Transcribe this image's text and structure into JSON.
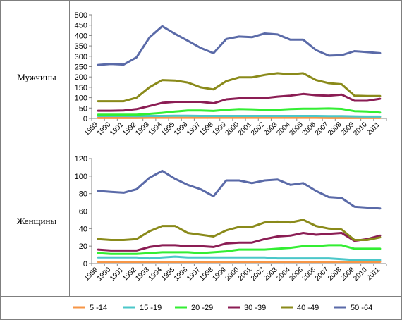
{
  "rows": [
    {
      "label": "Мужчины"
    },
    {
      "label": "Женщины"
    }
  ],
  "legend": [
    {
      "name": "5 -14",
      "color": "#f79646"
    },
    {
      "name": "15 -19",
      "color": "#4bc7c9"
    },
    {
      "name": "20 -29",
      "color": "#33ee33"
    },
    {
      "name": "30 -39",
      "color": "#8b1d54"
    },
    {
      "name": "40 -49",
      "color": "#8a8a1a"
    },
    {
      "name": "50 -64",
      "color": "#5a6aa8"
    }
  ],
  "chart_data": [
    {
      "type": "line",
      "title": "Мужчины",
      "xlabel": "",
      "ylabel": "",
      "ylim": [
        0,
        500
      ],
      "yticks": [
        "0",
        "50",
        "100",
        "150",
        "200",
        "250",
        "300",
        "350",
        "400",
        "450",
        "500"
      ],
      "grid": false,
      "x": [
        "1989",
        "1990",
        "1991",
        "1992",
        "1993",
        "1994",
        "1995",
        "1996",
        "1997",
        "1998",
        "1999",
        "2000",
        "2001",
        "2002",
        "2003",
        "2004",
        "2005",
        "2006",
        "2007",
        "2008",
        "2009",
        "2010",
        "2011"
      ],
      "series": [
        {
          "name": "5 -14",
          "values": [
            2,
            2,
            2,
            2,
            3,
            3,
            3,
            3,
            3,
            3,
            3,
            3,
            3,
            3,
            3,
            3,
            3,
            3,
            2,
            2,
            2,
            2,
            2
          ]
        },
        {
          "name": "15 -19",
          "values": [
            12,
            12,
            12,
            11,
            12,
            12,
            13,
            13,
            12,
            12,
            12,
            12,
            12,
            12,
            12,
            12,
            12,
            12,
            11,
            11,
            10,
            9,
            9
          ]
        },
        {
          "name": "20 -29",
          "values": [
            18,
            18,
            18,
            18,
            22,
            27,
            33,
            38,
            38,
            36,
            42,
            45,
            44,
            42,
            42,
            45,
            47,
            47,
            48,
            46,
            35,
            33,
            28
          ]
        },
        {
          "name": "30 -39",
          "values": [
            37,
            37,
            38,
            45,
            60,
            75,
            80,
            80,
            80,
            73,
            92,
            97,
            98,
            98,
            105,
            110,
            118,
            112,
            110,
            115,
            85,
            85,
            95
          ]
        },
        {
          "name": "40 -49",
          "values": [
            83,
            83,
            83,
            100,
            150,
            185,
            183,
            173,
            150,
            140,
            180,
            198,
            198,
            210,
            218,
            213,
            218,
            185,
            170,
            165,
            110,
            108,
            108
          ]
        },
        {
          "name": "50 -64",
          "values": [
            258,
            263,
            260,
            295,
            390,
            445,
            408,
            375,
            340,
            315,
            383,
            395,
            392,
            410,
            405,
            380,
            380,
            330,
            303,
            305,
            325,
            320,
            315
          ]
        }
      ]
    },
    {
      "type": "line",
      "title": "Женщины",
      "xlabel": "",
      "ylabel": "",
      "ylim": [
        0,
        120
      ],
      "yticks": [
        "0",
        "20",
        "40",
        "60",
        "80",
        "100",
        "120"
      ],
      "grid": false,
      "x": [
        "1989",
        "1990",
        "1991",
        "1992",
        "1993",
        "1994",
        "1995",
        "1996",
        "1997",
        "1998",
        "1999",
        "2000",
        "2001",
        "2002",
        "2003",
        "2004",
        "2005",
        "2006",
        "2007",
        "2008",
        "2009",
        "2010",
        "2011"
      ],
      "series": [
        {
          "name": "5 -14",
          "values": [
            2,
            2,
            2,
            2,
            2,
            2,
            2,
            2,
            2,
            2,
            2,
            2,
            2,
            2,
            2,
            2,
            2,
            2,
            2,
            2,
            2,
            2,
            2
          ]
        },
        {
          "name": "15 -19",
          "values": [
            7,
            7,
            7,
            7,
            6,
            7,
            8,
            7,
            7,
            7,
            7,
            7,
            7,
            7,
            6,
            6,
            6,
            6,
            6,
            5,
            4,
            4,
            4
          ]
        },
        {
          "name": "20 -29",
          "values": [
            12,
            11,
            11,
            11,
            12,
            13,
            13,
            13,
            12,
            13,
            14,
            16,
            16,
            16,
            17,
            18,
            20,
            20,
            21,
            21,
            17,
            17,
            17
          ]
        },
        {
          "name": "30 -39",
          "values": [
            16,
            15,
            15,
            15,
            19,
            21,
            21,
            20,
            20,
            19,
            23,
            24,
            24,
            28,
            31,
            32,
            35,
            33,
            34,
            35,
            26,
            28,
            32
          ]
        },
        {
          "name": "40 -49",
          "values": [
            28,
            27,
            27,
            28,
            37,
            43,
            43,
            35,
            33,
            31,
            38,
            42,
            42,
            47,
            48,
            47,
            50,
            43,
            40,
            39,
            27,
            27,
            30
          ]
        },
        {
          "name": "50 -64",
          "values": [
            83,
            82,
            81,
            85,
            98,
            106,
            97,
            90,
            85,
            77,
            95,
            95,
            92,
            95,
            96,
            90,
            92,
            83,
            76,
            75,
            65,
            64,
            63
          ]
        }
      ]
    }
  ]
}
